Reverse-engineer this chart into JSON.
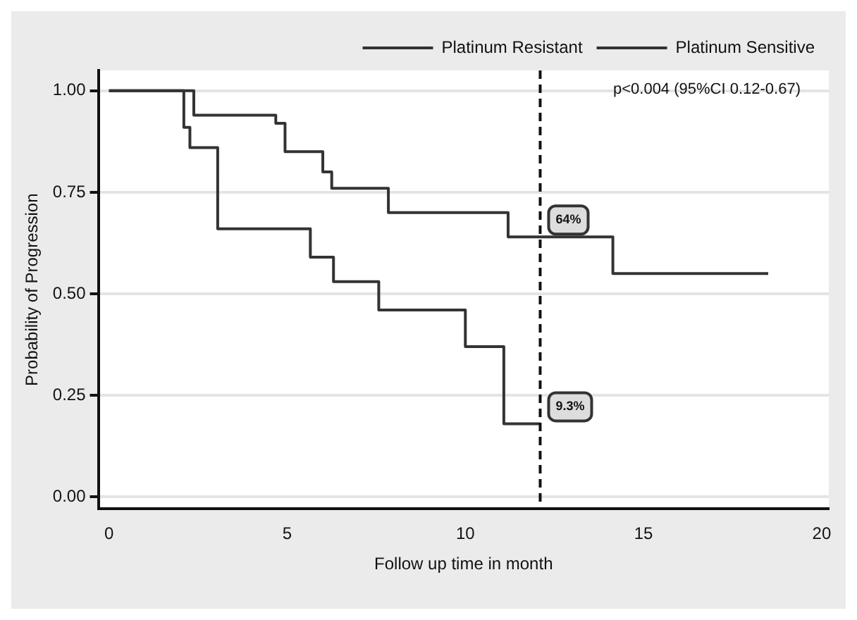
{
  "chart_data": {
    "type": "step",
    "xlabel": "Follow up time in month",
    "ylabel": "Probability of Progression",
    "xlim": [
      -0.3,
      20.2
    ],
    "xticks": [
      0,
      5,
      10,
      15,
      20
    ],
    "ylim": [
      -0.03,
      1.05
    ],
    "yticks": [
      {
        "value": 0,
        "label": "0.00"
      },
      {
        "value": 0.25,
        "label": "0.25"
      },
      {
        "value": 0.5,
        "label": "0.50"
      },
      {
        "value": 0.75,
        "label": "0.75"
      },
      {
        "value": 1,
        "label": "1.00"
      }
    ],
    "grid": "y",
    "legend": "top right",
    "line_style": "solid",
    "series": [
      {
        "name": "Platinum Resistant",
        "color": "#333333",
        "x": [
          0,
          2.1,
          2.27,
          3.05,
          5.65,
          6.3,
          7.57,
          10.0,
          11.08,
          12.1
        ],
        "values": [
          1,
          0.91,
          0.86,
          0.66,
          0.59,
          0.53,
          0.46,
          0.37,
          0.18,
          0.18
        ]
      },
      {
        "name": "Platinum Sensitive",
        "color": "#333333",
        "x": [
          0,
          2.38,
          4.68,
          4.94,
          6.0,
          6.25,
          7.84,
          11.2,
          14.14,
          18.5
        ],
        "values": [
          1,
          0.94,
          0.92,
          0.85,
          0.8,
          0.76,
          0.7,
          0.64,
          0.55,
          0.55
        ]
      }
    ],
    "ref_lines": [
      {
        "axis": "x",
        "value": 12.1,
        "line_style": "dashed",
        "color": "#111111"
      }
    ],
    "annotations": [
      "p<0.004 (95%CI 0.12-0.67)",
      {
        "text": "64%",
        "x": 12.1,
        "y": 0.64
      },
      {
        "text": "9.3%",
        "x": 12.1,
        "y": 0.18
      }
    ]
  }
}
